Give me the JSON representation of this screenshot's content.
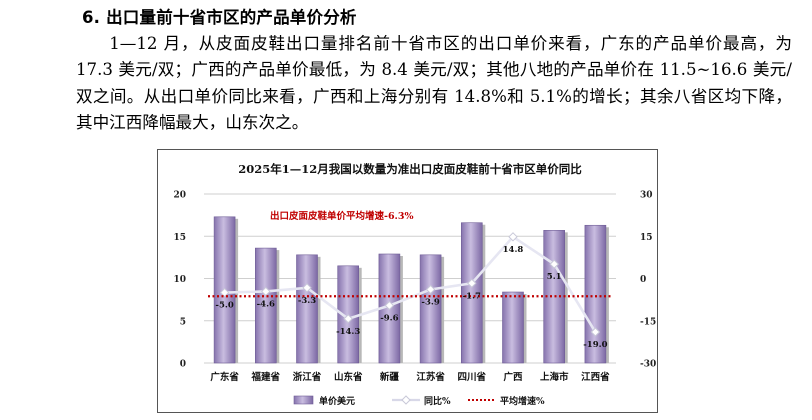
{
  "section_title": "6. 出口量前十省市区的产品单价分析",
  "paragraph": "1—12 月，从皮面皮鞋出口量排名前十省市区的出口单价来看，广东的产品单价最高，为 17.3 美元/双；广西的产品单价最低，为 8.4 美元/双；其他八地的产品单价在 11.5~16.6 美元/双之间。从出口单价同比来看，广西和上海分别有 14.8%和 5.1%的增长；其余八省区均下降，其中江西降幅最大，山东次之。",
  "chart_data": {
    "type": "bar",
    "title": "2025年1—12月我国以数量为准出口皮面皮鞋前十省市区单价同比",
    "categories": [
      "广东省",
      "福建省",
      "浙江省",
      "山东省",
      "新疆",
      "江苏省",
      "四川省",
      "广西",
      "上海市",
      "江西省"
    ],
    "series": [
      {
        "name": "单价美元",
        "kind": "bar",
        "axis": "left",
        "color": "#a08cc0",
        "values": [
          17.3,
          13.6,
          12.8,
          11.5,
          12.9,
          12.8,
          16.6,
          8.4,
          15.7,
          16.3
        ]
      },
      {
        "name": "同比%",
        "kind": "line",
        "axis": "right",
        "color": "#e6e6f2",
        "values": [
          -5.0,
          -4.6,
          -3.3,
          -14.3,
          -9.6,
          -3.9,
          -1.7,
          14.8,
          5.1,
          -19.0
        ]
      },
      {
        "name": "平均增速%",
        "kind": "dotted-line",
        "axis": "right",
        "color": "#c00000",
        "value": -6.3
      }
    ],
    "ylim_left": [
      0,
      20
    ],
    "yticks_left": [
      0,
      5,
      10,
      15,
      20
    ],
    "ylim_right": [
      -30,
      30
    ],
    "yticks_right": [
      -30,
      -15,
      0,
      15,
      30
    ],
    "annotation": "出口皮面皮鞋单价平均增速-6.3%",
    "legend_position": "bottom",
    "grid": true
  }
}
